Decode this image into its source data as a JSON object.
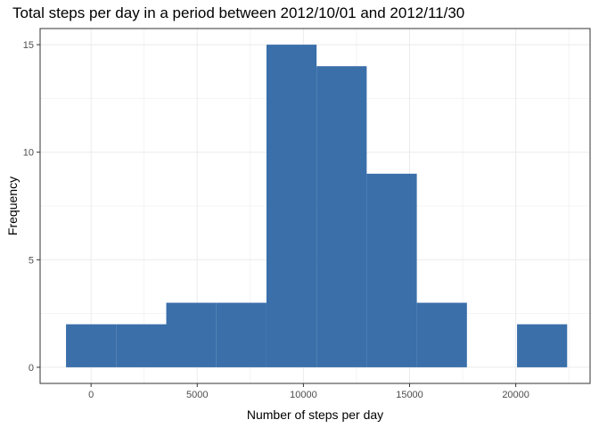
{
  "chart_data": {
    "type": "histogram",
    "title": "Total steps per day in a period between 2012/10/01 and 2012/11/30",
    "xlabel": "Number of steps per day",
    "ylabel": "Frequency",
    "bar_color": "#3A6FAA",
    "xlim": [
      -2400,
      23500
    ],
    "ylim": [
      -0.75,
      15.75
    ],
    "x_ticks": [
      0,
      5000,
      10000,
      15000,
      20000
    ],
    "x_tick_labels": [
      "0",
      "5000",
      "10000",
      "15000",
      "20000"
    ],
    "y_ticks": [
      0,
      5,
      10,
      15
    ],
    "y_tick_labels": [
      "0",
      "5",
      "10",
      "15"
    ],
    "grid": true,
    "bins": [
      {
        "x_start": -1180,
        "x_end": 1180,
        "count": 2
      },
      {
        "x_start": 1180,
        "x_end": 3540,
        "count": 2
      },
      {
        "x_start": 3540,
        "x_end": 5900,
        "count": 3
      },
      {
        "x_start": 5900,
        "x_end": 8260,
        "count": 3
      },
      {
        "x_start": 8260,
        "x_end": 10620,
        "count": 15
      },
      {
        "x_start": 10620,
        "x_end": 12980,
        "count": 14
      },
      {
        "x_start": 12980,
        "x_end": 15340,
        "count": 9
      },
      {
        "x_start": 15340,
        "x_end": 17700,
        "count": 3
      },
      {
        "x_start": 17700,
        "x_end": 20060,
        "count": 0
      },
      {
        "x_start": 20060,
        "x_end": 22420,
        "count": 2
      }
    ]
  }
}
